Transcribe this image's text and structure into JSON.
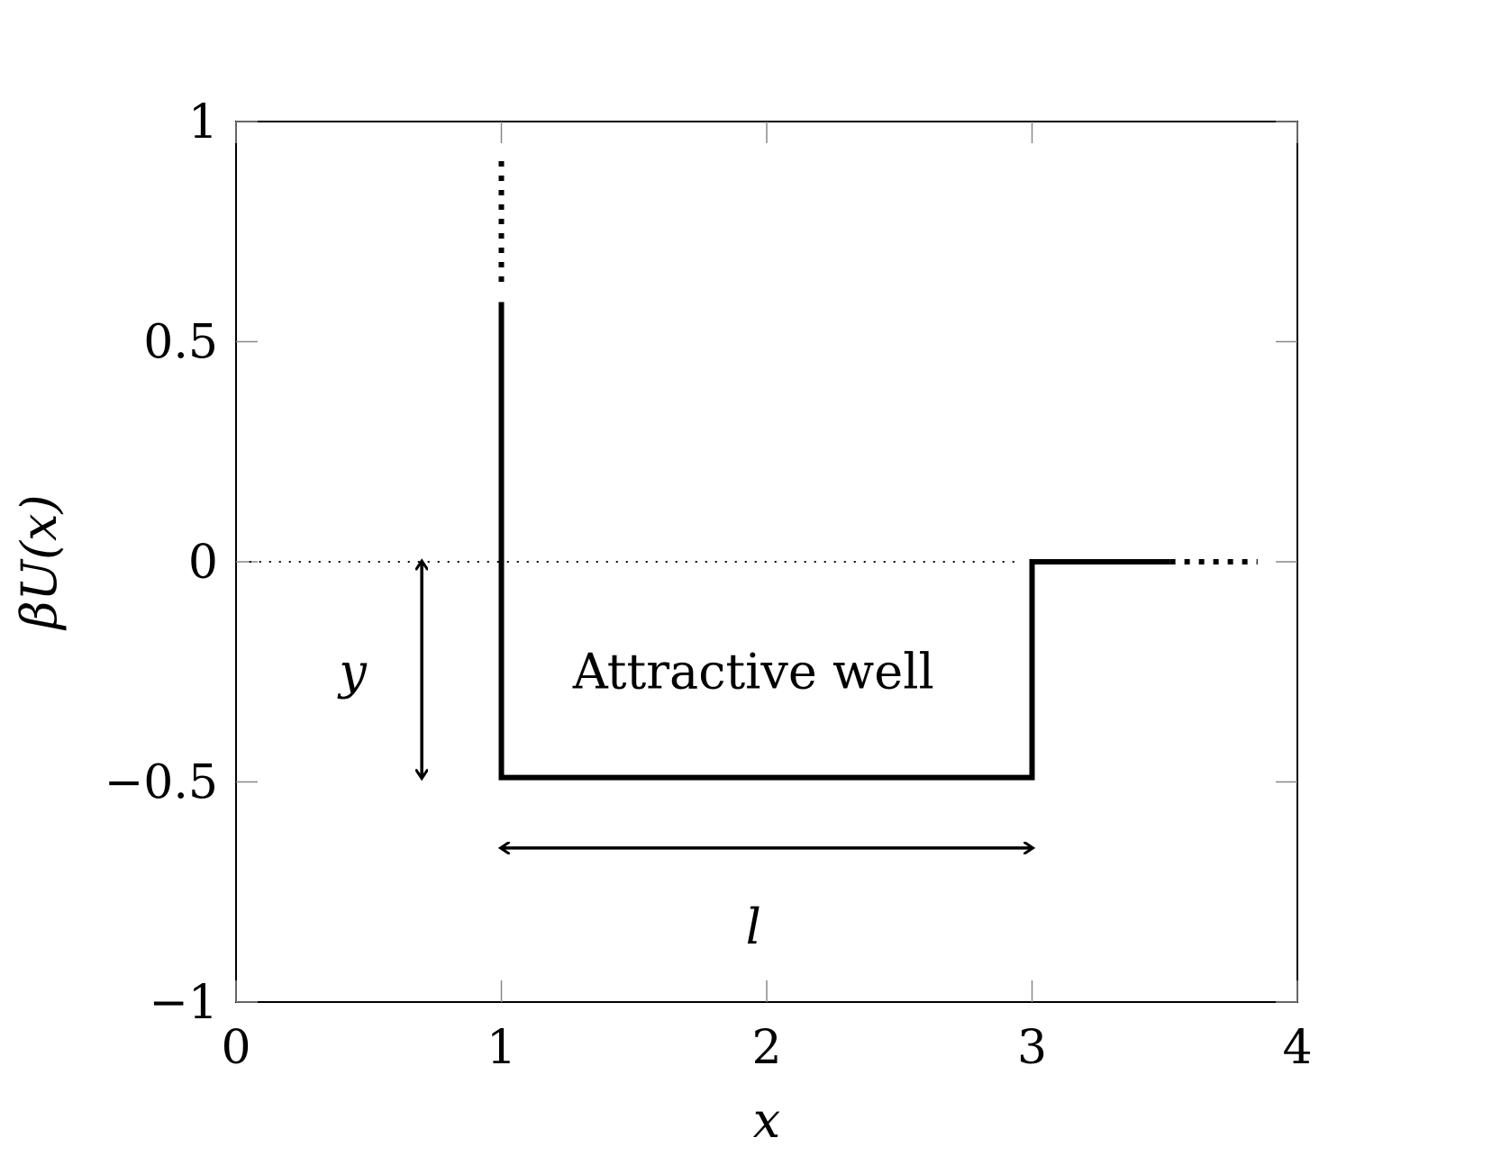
{
  "chart_data": {
    "type": "line",
    "title": "",
    "xlabel": "x",
    "ylabel": "βU(x)",
    "xlim": [
      0,
      4
    ],
    "ylim": [
      -1,
      1
    ],
    "x_ticks": [
      0,
      1,
      2,
      3,
      4
    ],
    "x_tick_labels": [
      "0",
      "1",
      "2",
      "3",
      "4"
    ],
    "y_ticks": [
      -1,
      -0.5,
      0,
      0.5,
      1
    ],
    "y_tick_labels": [
      "−1",
      "−0.5",
      "0",
      "0.5",
      "1"
    ],
    "grid": false,
    "series": [
      {
        "style": "solid",
        "points": [
          [
            1,
            0.59
          ],
          [
            1,
            -0.49
          ],
          [
            3,
            -0.49
          ],
          [
            3,
            0
          ],
          [
            3.52,
            0
          ]
        ]
      },
      {
        "style": "dotted-thick",
        "points": [
          [
            1,
            0.91
          ],
          [
            1,
            0.62
          ]
        ]
      },
      {
        "style": "dotted-thick",
        "points": [
          [
            3.52,
            0
          ],
          [
            3.85,
            0
          ]
        ]
      },
      {
        "style": "dotted-thin",
        "points": [
          [
            0.05,
            0
          ],
          [
            2.95,
            0
          ]
        ]
      }
    ],
    "annotations": [
      {
        "kind": "text",
        "text": "Attractive well",
        "x": 1.95,
        "y": -0.25,
        "italic": false
      },
      {
        "kind": "text",
        "text": "y",
        "x": 0.44,
        "y": -0.25,
        "italic": true
      },
      {
        "kind": "text",
        "text": "l",
        "x": 1.95,
        "y": -0.83,
        "italic": true
      },
      {
        "kind": "double-arrow",
        "from": [
          0.7,
          0
        ],
        "to": [
          0.7,
          -0.49
        ]
      },
      {
        "kind": "double-arrow",
        "from": [
          1,
          -0.65
        ],
        "to": [
          3,
          -0.65
        ]
      }
    ]
  }
}
